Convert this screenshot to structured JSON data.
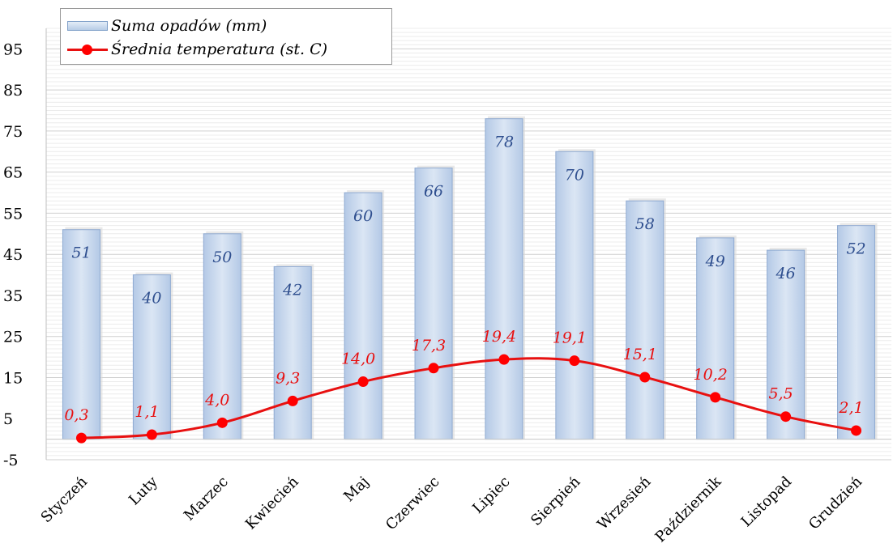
{
  "chart_data": {
    "type": "bar",
    "categories": [
      "Styczeń",
      "Luty",
      "Marzec",
      "Kwiecień",
      "Maj",
      "Czerwiec",
      "Lipiec",
      "Sierpień",
      "Wrzesień",
      "Październik",
      "Listopad",
      "Grudzień"
    ],
    "series": [
      {
        "name": "Suma opadów (mm)",
        "type": "bar",
        "color": "#B8CDE8",
        "values": [
          51,
          40,
          50,
          42,
          60,
          66,
          78,
          70,
          58,
          49,
          46,
          52
        ],
        "labels": [
          "51",
          "40",
          "50",
          "42",
          "60",
          "66",
          "78",
          "70",
          "58",
          "49",
          "46",
          "52"
        ]
      },
      {
        "name": "Średnia temperatura (st. C)",
        "type": "line",
        "color": "#E81010",
        "values": [
          0.3,
          1.1,
          4.0,
          9.3,
          14.0,
          17.3,
          19.4,
          19.1,
          15.1,
          10.2,
          5.5,
          2.1
        ],
        "labels": [
          "0,3",
          "1,1",
          "4,0",
          "9,3",
          "14,0",
          "17,3",
          "19,4",
          "19,1",
          "15,1",
          "10,2",
          "5,5",
          "2,1"
        ]
      }
    ],
    "yticks": [
      "-5",
      "5",
      "15",
      "25",
      "35",
      "45",
      "55",
      "65",
      "75",
      "85",
      "95"
    ],
    "ylim": [
      -5,
      100
    ],
    "grid": true,
    "legend_position": "top-left"
  }
}
